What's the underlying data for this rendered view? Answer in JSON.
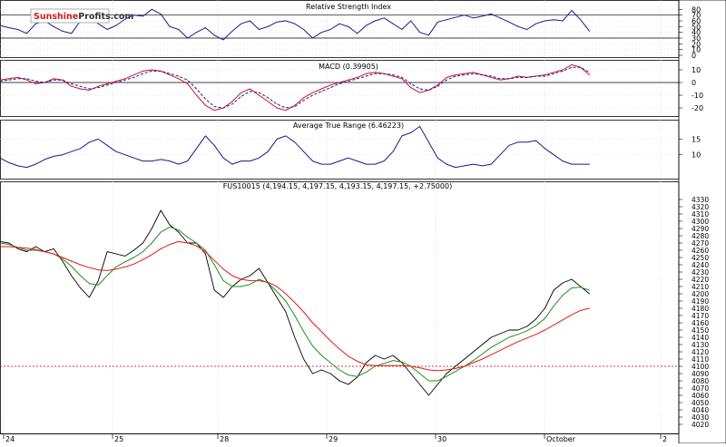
{
  "brand": {
    "logo_text_part1": "Sunshine",
    "logo_text_part2": "Profits",
    "logo_text_part3": ".com",
    "logo_color": "#d01a1a"
  },
  "x_axis": {
    "tick_labels": [
      "24",
      "25",
      "28",
      "29",
      "30",
      "October",
      "2"
    ]
  },
  "colors": {
    "price_line": "#000000",
    "indicator_line": "#1a1a8c",
    "macd_signal": "#c8102e",
    "ma_fast": "#1f8f1f",
    "ma_slow": "#e31a1a",
    "reference_line": "#c00000",
    "grid": "#c8c8c8"
  },
  "chart_data": [
    {
      "type": "line",
      "title": "Relative Strength Index",
      "ylim": [
        0,
        90
      ],
      "y_ticks": [
        0,
        10,
        20,
        30,
        40,
        50,
        60,
        70,
        80
      ],
      "reference_lines": [
        30,
        70
      ],
      "grid": true,
      "series": [
        {
          "x": [
            0,
            10,
            20,
            30,
            40,
            50,
            60,
            70,
            80,
            90,
            100,
            110,
            120,
            130,
            140,
            150,
            160,
            170,
            180,
            190,
            200,
            210,
            220,
            230,
            240,
            250,
            260,
            270,
            280,
            290,
            300,
            310,
            320,
            330,
            340,
            350,
            360,
            370,
            380,
            390,
            400,
            410,
            420,
            430,
            440,
            450,
            460,
            470,
            480,
            490,
            500,
            510,
            520,
            530,
            540,
            550,
            560,
            570,
            580,
            590,
            600,
            610,
            620,
            630,
            640,
            650,
            660
          ],
          "values": [
            52,
            48,
            45,
            38,
            55,
            60,
            50,
            42,
            38,
            60,
            70,
            55,
            45,
            52,
            63,
            70,
            68,
            80,
            72,
            50,
            45,
            30,
            40,
            48,
            35,
            27,
            42,
            55,
            60,
            45,
            50,
            58,
            60,
            55,
            45,
            30,
            40,
            45,
            55,
            50,
            38,
            52,
            60,
            65,
            55,
            45,
            60,
            40,
            35,
            58,
            62,
            66,
            70,
            65,
            68,
            72,
            65,
            58,
            50,
            45,
            55,
            60,
            62,
            60,
            78,
            62,
            42
          ]
        }
      ]
    },
    {
      "type": "line",
      "title": "MACD (0.39905)",
      "ylim": [
        -25,
        15
      ],
      "y_ticks": [
        -20,
        -10,
        0,
        10
      ],
      "reference_lines": [
        0
      ],
      "grid": true,
      "series": [
        {
          "x": [
            0,
            10,
            20,
            30,
            40,
            50,
            60,
            70,
            80,
            90,
            100,
            110,
            120,
            130,
            140,
            150,
            160,
            170,
            180,
            190,
            200,
            210,
            220,
            230,
            240,
            250,
            260,
            270,
            280,
            290,
            300,
            310,
            320,
            330,
            340,
            350,
            360,
            370,
            380,
            390,
            400,
            410,
            420,
            430,
            440,
            450,
            460,
            470,
            480,
            490,
            500,
            510,
            520,
            530,
            540,
            550,
            560,
            570,
            580,
            590,
            600,
            610,
            620,
            630,
            640,
            650,
            660
          ],
          "values": [
            2,
            3,
            4,
            2,
            -1,
            0,
            3,
            2,
            -3,
            -5,
            -6,
            -3,
            -1,
            1,
            3,
            6,
            9,
            10,
            9,
            6,
            3,
            -1,
            -10,
            -18,
            -22,
            -20,
            -15,
            -8,
            -5,
            -10,
            -15,
            -20,
            -22,
            -18,
            -12,
            -8,
            -5,
            -2,
            0,
            2,
            4,
            7,
            8,
            7,
            5,
            3,
            -4,
            -8,
            -6,
            -2,
            4,
            6,
            7,
            8,
            6,
            4,
            2,
            3,
            5,
            4,
            5,
            6,
            8,
            10,
            14,
            12,
            6
          ]
        },
        {
          "x": [
            0,
            10,
            20,
            30,
            40,
            50,
            60,
            70,
            80,
            90,
            100,
            110,
            120,
            130,
            140,
            150,
            160,
            170,
            180,
            190,
            200,
            210,
            220,
            230,
            240,
            250,
            260,
            270,
            280,
            290,
            300,
            310,
            320,
            330,
            340,
            350,
            360,
            370,
            380,
            390,
            400,
            410,
            420,
            430,
            440,
            450,
            460,
            470,
            480,
            490,
            500,
            510,
            520,
            530,
            540,
            550,
            560,
            570,
            580,
            590,
            600,
            610,
            620,
            630,
            640,
            650,
            660
          ],
          "values": [
            1,
            2,
            3,
            3,
            1,
            0,
            2,
            2,
            -1,
            -3,
            -5,
            -4,
            -2,
            0,
            2,
            4,
            7,
            9,
            9,
            7,
            5,
            2,
            -5,
            -13,
            -19,
            -20,
            -17,
            -11,
            -7,
            -8,
            -12,
            -17,
            -20,
            -19,
            -14,
            -10,
            -7,
            -4,
            -1,
            1,
            3,
            5,
            7,
            7,
            6,
            4,
            -1,
            -5,
            -6,
            -3,
            2,
            5,
            6,
            7,
            6,
            5,
            3,
            3,
            4,
            4,
            5,
            5,
            7,
            9,
            12,
            12,
            8
          ]
        }
      ]
    },
    {
      "type": "line",
      "title": "Average True Range (6.46223)",
      "ylim": [
        3,
        20
      ],
      "y_ticks": [
        10,
        15
      ],
      "grid": true,
      "series": [
        {
          "x": [
            0,
            10,
            20,
            30,
            40,
            50,
            60,
            70,
            80,
            90,
            100,
            110,
            120,
            130,
            140,
            150,
            160,
            170,
            180,
            190,
            200,
            210,
            220,
            230,
            240,
            250,
            260,
            270,
            280,
            290,
            300,
            310,
            320,
            330,
            340,
            350,
            360,
            370,
            380,
            390,
            400,
            410,
            420,
            430,
            440,
            450,
            460,
            470,
            480,
            490,
            500,
            510,
            520,
            530,
            540,
            550,
            560,
            570,
            580,
            590,
            600,
            610,
            620,
            630,
            640,
            650,
            660
          ],
          "values": [
            9,
            7.5,
            6.5,
            6,
            7,
            8.5,
            9.5,
            10,
            11,
            12,
            14,
            15,
            13,
            11,
            10,
            9,
            8,
            8,
            8.5,
            8,
            7,
            8,
            12,
            16,
            13,
            9,
            7,
            8,
            8,
            9,
            11,
            15,
            16,
            14,
            11,
            8,
            7,
            7,
            8,
            9,
            8,
            7,
            7,
            8,
            11,
            16,
            17,
            19,
            14,
            9,
            7,
            6,
            6.5,
            7,
            6.5,
            7,
            10,
            13,
            14,
            14,
            14.5,
            12,
            10,
            8,
            7,
            7,
            7
          ]
        }
      ]
    },
    {
      "type": "line",
      "title": "FUS10015 (4,194.15, 4,197.15, 4,193.15, 4,197.15, +2.75000)",
      "ylim": [
        4010,
        4340
      ],
      "y_ticks": [
        4020,
        4030,
        4040,
        4050,
        4060,
        4070,
        4080,
        4090,
        4100,
        4110,
        4120,
        4130,
        4140,
        4150,
        4160,
        4170,
        4180,
        4190,
        4200,
        4210,
        4220,
        4230,
        4240,
        4250,
        4260,
        4270,
        4280,
        4290,
        4300,
        4310,
        4320,
        4330
      ],
      "reference_lines": [
        4100
      ],
      "grid": true,
      "series": [
        {
          "x": [
            0,
            10,
            20,
            30,
            40,
            50,
            60,
            70,
            80,
            90,
            100,
            110,
            120,
            130,
            140,
            150,
            160,
            170,
            180,
            190,
            200,
            210,
            220,
            230,
            240,
            250,
            260,
            270,
            280,
            290,
            300,
            310,
            320,
            330,
            340,
            350,
            360,
            370,
            380,
            390,
            400,
            410,
            420,
            430,
            440,
            450,
            460,
            470,
            480,
            490,
            500,
            510,
            520,
            530,
            540,
            550,
            560,
            570,
            580,
            590,
            600,
            610,
            620,
            630,
            640,
            650,
            660
          ],
          "values": [
            4272,
            4270,
            4262,
            4258,
            4265,
            4258,
            4262,
            4245,
            4225,
            4208,
            4195,
            4218,
            4258,
            4255,
            4252,
            4260,
            4270,
            4290,
            4315,
            4295,
            4285,
            4270,
            4270,
            4255,
            4205,
            4195,
            4210,
            4220,
            4225,
            4235,
            4215,
            4195,
            4175,
            4140,
            4110,
            4090,
            4095,
            4090,
            4080,
            4075,
            4085,
            4105,
            4115,
            4110,
            4115,
            4105,
            4090,
            4075,
            4060,
            4075,
            4090,
            4100,
            4110,
            4120,
            4130,
            4140,
            4145,
            4150,
            4150,
            4155,
            4165,
            4180,
            4205,
            4215,
            4220,
            4210,
            4200
          ]
        },
        {
          "x": [
            0,
            10,
            20,
            30,
            40,
            50,
            60,
            70,
            80,
            90,
            100,
            110,
            120,
            130,
            140,
            150,
            160,
            170,
            180,
            190,
            200,
            210,
            220,
            230,
            240,
            250,
            260,
            270,
            280,
            290,
            300,
            310,
            320,
            330,
            340,
            350,
            360,
            370,
            380,
            390,
            400,
            410,
            420,
            430,
            440,
            450,
            460,
            470,
            480,
            490,
            500,
            510,
            520,
            530,
            540,
            550,
            560,
            570,
            580,
            590,
            600,
            610,
            620,
            630,
            640,
            650,
            660
          ],
          "values": [
            4270,
            4268,
            4264,
            4260,
            4260,
            4258,
            4255,
            4248,
            4238,
            4225,
            4214,
            4212,
            4225,
            4237,
            4244,
            4250,
            4258,
            4270,
            4285,
            4292,
            4288,
            4278,
            4270,
            4260,
            4240,
            4218,
            4210,
            4210,
            4213,
            4220,
            4215,
            4203,
            4190,
            4170,
            4148,
            4128,
            4115,
            4105,
            4095,
            4088,
            4086,
            4092,
            4100,
            4104,
            4108,
            4106,
            4100,
            4090,
            4080,
            4080,
            4086,
            4093,
            4100,
            4108,
            4117,
            4126,
            4133,
            4140,
            4144,
            4149,
            4156,
            4166,
            4183,
            4198,
            4208,
            4209,
            4205
          ]
        },
        {
          "x": [
            0,
            10,
            20,
            30,
            40,
            50,
            60,
            70,
            80,
            90,
            100,
            110,
            120,
            130,
            140,
            150,
            160,
            170,
            180,
            190,
            200,
            210,
            220,
            230,
            240,
            250,
            260,
            270,
            280,
            290,
            300,
            310,
            320,
            330,
            340,
            350,
            360,
            370,
            380,
            390,
            400,
            410,
            420,
            430,
            440,
            450,
            460,
            470,
            480,
            490,
            500,
            510,
            520,
            530,
            540,
            550,
            560,
            570,
            580,
            590,
            600,
            610,
            620,
            630,
            640,
            650,
            660
          ],
          "values": [
            4265,
            4265,
            4264,
            4263,
            4261,
            4258,
            4255,
            4250,
            4245,
            4240,
            4236,
            4233,
            4232,
            4234,
            4237,
            4241,
            4247,
            4254,
            4262,
            4268,
            4272,
            4270,
            4266,
            4258,
            4246,
            4234,
            4225,
            4220,
            4218,
            4218,
            4216,
            4210,
            4200,
            4188,
            4175,
            4160,
            4148,
            4135,
            4124,
            4114,
            4107,
            4102,
            4101,
            4101,
            4101,
            4101,
            4100,
            4098,
            4095,
            4094,
            4095,
            4097,
            4100,
            4105,
            4110,
            4116,
            4122,
            4128,
            4134,
            4139,
            4144,
            4150,
            4157,
            4164,
            4171,
            4177,
            4180
          ]
        }
      ]
    }
  ]
}
